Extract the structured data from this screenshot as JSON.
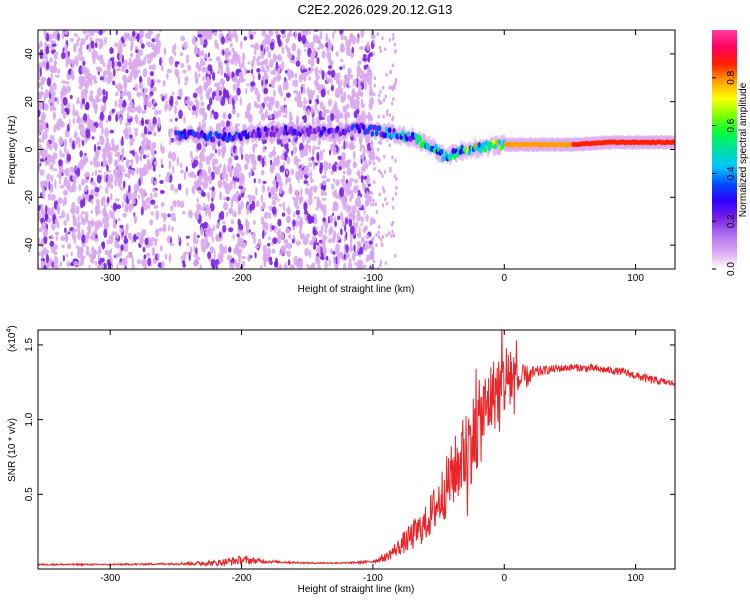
{
  "title": "C2E2.2026.029.20.12.G13",
  "chart_data": [
    {
      "type": "heatmap",
      "description_of_content": "spectrogram",
      "xlabel": "Height of straight line (km)",
      "ylabel": "Frequency (Hz)",
      "xlim": [
        -355,
        130
      ],
      "ylim": [
        -50,
        50
      ],
      "xticks": [
        -300,
        -200,
        -100,
        0,
        100
      ],
      "yticks": [
        -40,
        -20,
        0,
        20,
        40
      ],
      "xtick_labels": [
        "-300",
        "-200",
        "-100",
        "0",
        "100"
      ],
      "ytick_labels": [
        "-40",
        "-20",
        "0",
        "20",
        "40"
      ],
      "colorbar": {
        "label": "Normalized spectral amplitude",
        "range": [
          0,
          1
        ],
        "ticks": [
          0.0,
          0.2,
          0.4,
          0.6,
          0.8
        ],
        "tick_labels": [
          "0.0",
          "0.2",
          "0.4",
          "0.6",
          "0.8"
        ],
        "colors": [
          "#ffffff",
          "#d9a8f0",
          "#b070f0",
          "#7a20e8",
          "#2a00ff",
          "#0050ff",
          "#00c8ff",
          "#00e0a0",
          "#00ff40",
          "#80ff00",
          "#ffff00",
          "#ffa000",
          "#ff2000",
          "#ff0060",
          "#ff40a0"
        ]
      },
      "signal_track": {
        "x": [
          -250,
          -230,
          -210,
          -190,
          -160,
          -130,
          -110,
          -90,
          -70,
          -55,
          -45,
          -30,
          -15,
          0,
          20,
          50,
          80,
          110,
          130
        ],
        "freq": [
          6,
          6,
          5,
          7,
          8,
          7,
          9,
          7,
          5,
          1,
          -3,
          0,
          1,
          2,
          2,
          2,
          3,
          3,
          3
        ],
        "amplitude": [
          0.3,
          0.35,
          0.3,
          0.25,
          0.25,
          0.25,
          0.3,
          0.4,
          0.45,
          0.5,
          0.45,
          0.6,
          0.7,
          0.75,
          0.8,
          0.82,
          0.85,
          0.85,
          0.85
        ]
      },
      "noise_region": {
        "x_start": -355,
        "x_end": -100
      }
    },
    {
      "type": "line",
      "xlabel": "Height of straight line (km)",
      "ylabel": "SNR (10 * v/v)",
      "y_multiplier_label": "(x10",
      "y_multiplier_exponent": "4",
      "y_multiplier_close": ")",
      "xlim": [
        -355,
        130
      ],
      "ylim": [
        0,
        1.6
      ],
      "xticks": [
        -300,
        -200,
        -100,
        0,
        100
      ],
      "yticks": [
        0.5,
        1.0,
        1.5
      ],
      "xtick_labels": [
        "-300",
        "-200",
        "-100",
        "0",
        "100"
      ],
      "ytick_labels": [
        "0.5",
        "1.0",
        "1.5"
      ],
      "color": "#e8262a",
      "series": [
        {
          "name": "SNR",
          "x": [
            -355,
            -300,
            -250,
            -220,
            -200,
            -180,
            -150,
            -120,
            -100,
            -90,
            -80,
            -70,
            -60,
            -50,
            -40,
            -30,
            -20,
            -10,
            0,
            5,
            10,
            20,
            30,
            50,
            70,
            90,
            110,
            130
          ],
          "y": [
            0.03,
            0.03,
            0.035,
            0.04,
            0.06,
            0.05,
            0.04,
            0.04,
            0.05,
            0.08,
            0.15,
            0.22,
            0.3,
            0.45,
            0.62,
            0.78,
            0.95,
            1.15,
            1.25,
            1.3,
            1.25,
            1.3,
            1.33,
            1.35,
            1.34,
            1.32,
            1.27,
            1.24
          ]
        }
      ],
      "noise_amplitude": [
        0.005,
        0.005,
        0.006,
        0.02,
        0.03,
        0.01,
        0.005,
        0.005,
        0.01,
        0.03,
        0.06,
        0.1,
        0.12,
        0.18,
        0.22,
        0.28,
        0.3,
        0.25,
        0.25,
        0.3,
        0.12,
        0.06,
        0.03,
        0.025,
        0.025,
        0.025,
        0.03,
        0.02
      ]
    }
  ]
}
